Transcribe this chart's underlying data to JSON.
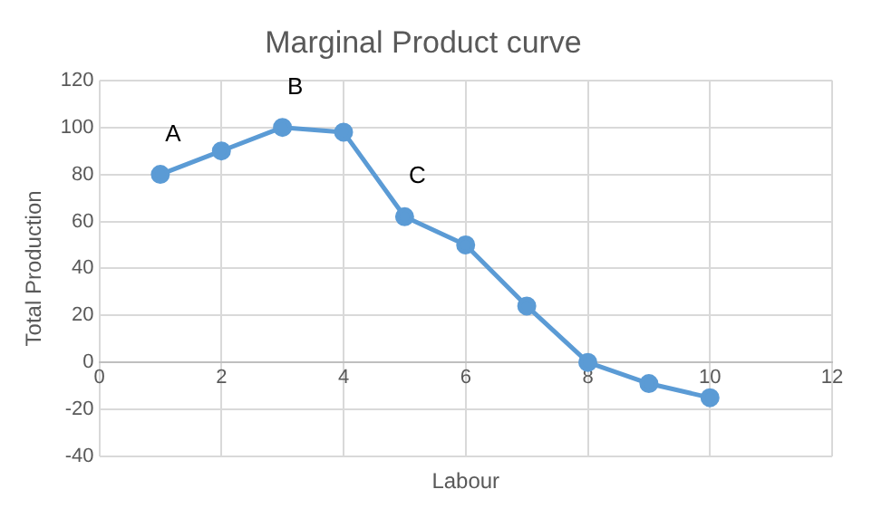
{
  "chart_data": {
    "type": "line",
    "title": "Marginal Product curve",
    "xlabel": "Labour",
    "ylabel": "Total Production",
    "x": [
      1,
      2,
      3,
      4,
      5,
      6,
      7,
      8,
      9,
      10
    ],
    "series": [
      {
        "color": "#5b9bd5",
        "values": [
          80,
          90,
          100,
          98,
          62,
          50,
          24,
          0,
          -9,
          -15
        ]
      }
    ],
    "xlim": [
      0,
      12
    ],
    "xticks": [
      0,
      2,
      4,
      6,
      8,
      10,
      12
    ],
    "ylim": [
      -40,
      120
    ],
    "yticks": [
      -40,
      -20,
      0,
      20,
      40,
      60,
      80,
      100,
      120
    ],
    "grid": true,
    "legend": false,
    "marker": "circle",
    "line_style": "solid",
    "annotations": [
      {
        "text": "A",
        "x": 1,
        "y": 80
      },
      {
        "text": "B",
        "x": 3,
        "y": 100
      },
      {
        "text": "C",
        "x": 5,
        "y": 62
      }
    ]
  }
}
